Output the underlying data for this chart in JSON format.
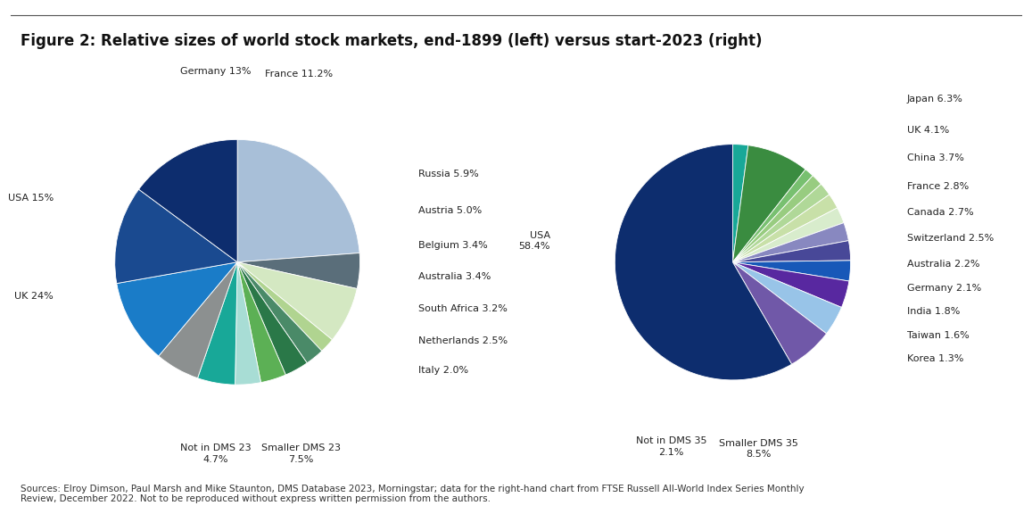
{
  "title": "Figure 2: Relative sizes of world stock markets, end-1899 (left) versus start-2023 (right)",
  "left_chart": {
    "labels": [
      "UK",
      "Not in DMS 23",
      "Smaller DMS 23",
      "Italy",
      "Netherlands",
      "South Africa",
      "Australia",
      "Belgium",
      "Austria",
      "Russia",
      "France",
      "Germany",
      "USA"
    ],
    "values": [
      24.0,
      4.7,
      7.5,
      2.0,
      2.5,
      3.2,
      3.4,
      3.4,
      5.0,
      5.9,
      11.2,
      13.0,
      15.0
    ],
    "colors": [
      "#a8bfd8",
      "#5a6e7a",
      "#d4e8c2",
      "#b0d490",
      "#4a8a68",
      "#2a7848",
      "#5cb055",
      "#a8ddd5",
      "#18a898",
      "#8c9090",
      "#1a7cc8",
      "#1a4a90",
      "#0d2d6e"
    ],
    "label_display": [
      "UK 24%",
      "Not in DMS 23\n4.7%",
      "Smaller DMS 23\n7.5%",
      "Italy 2.0%",
      "Netherlands 2.5%",
      "South Africa 3.2%",
      "Australia 3.4%",
      "Belgium 3.4%",
      "Austria 5.0%",
      "Russia 5.9%",
      "France 11.2%",
      "Germany 13%",
      "USA 15%"
    ]
  },
  "right_chart": {
    "labels": [
      "Not in DMS 35",
      "Smaller DMS 35",
      "Korea",
      "Taiwan",
      "India",
      "Germany",
      "Australia",
      "Switzerland",
      "Canada",
      "France",
      "China",
      "UK",
      "Japan",
      "USA"
    ],
    "values": [
      2.1,
      8.5,
      1.3,
      1.6,
      1.8,
      2.1,
      2.2,
      2.5,
      2.7,
      2.8,
      3.7,
      4.1,
      6.3,
      58.4
    ],
    "colors": [
      "#18a898",
      "#3a8c40",
      "#78c070",
      "#98cc80",
      "#b0d898",
      "#c8e0a8",
      "#d8eccc",
      "#8888c0",
      "#484898",
      "#1858b8",
      "#5828a0",
      "#98c4e8",
      "#7058a8",
      "#0d2d6e"
    ],
    "label_display": [
      "Not in DMS 35\n2.1%",
      "Smaller DMS 35\n8.5%",
      "Korea 1.3%",
      "Taiwan 1.6%",
      "India 1.8%",
      "Germany 2.1%",
      "Australia 2.2%",
      "Switzerland 2.5%",
      "Canada 2.7%",
      "France 2.8%",
      "China 3.7%",
      "UK 4.1%",
      "Japan 6.3%",
      "USA\n58.4%"
    ]
  },
  "source_text": "Sources: Elroy Dimson, Paul Marsh and Mike Staunton, DMS Database 2023, Morningstar; data for the right-hand chart from FTSE Russell All-World Index Series Monthly\nReview, December 2022. Not to be reproduced without express written permission from the authors.",
  "background_color": "#ffffff",
  "title_fontsize": 12,
  "label_fontsize": 8,
  "source_fontsize": 7.5
}
